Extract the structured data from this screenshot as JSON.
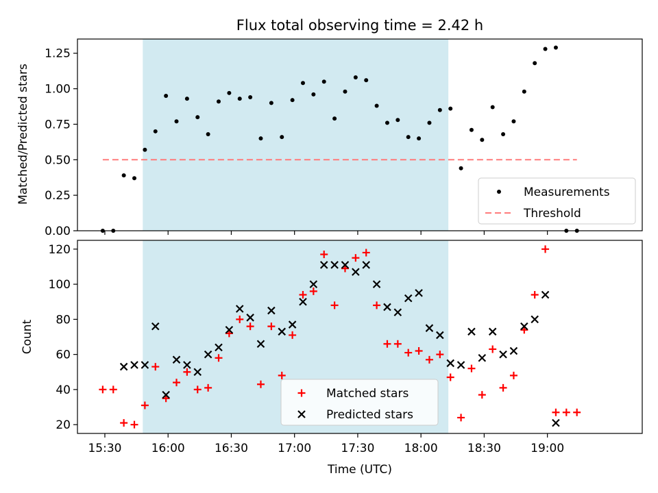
{
  "figure": {
    "title": "Flux total observing time = 2.42 h",
    "xlabel": "Time (UTC)"
  },
  "chart_data": [
    {
      "type": "scatter",
      "title": "Flux total observing time = 2.42 h",
      "xlabel": "",
      "ylabel": "Matched/Predicted stars",
      "x_unit": "time of day (UTC)",
      "xlim": [
        "15:17",
        "19:45"
      ],
      "ylim": [
        0,
        1.35
      ],
      "yticks": [
        0.0,
        0.25,
        0.5,
        0.75,
        1.0,
        1.25
      ],
      "ytick_labels": [
        "0.00",
        "0.25",
        "0.50",
        "0.75",
        "1.00",
        "1.25"
      ],
      "shaded_interval": [
        "15:48",
        "18:13"
      ],
      "shaded_color": "#add8e6",
      "legend": {
        "position": "bottom-right"
      },
      "series": [
        {
          "name": "Measurements",
          "marker": "dot",
          "color": "#000000",
          "x": [
            "15:29",
            "15:34",
            "15:39",
            "15:44",
            "15:49",
            "15:54",
            "15:59",
            "16:04",
            "16:09",
            "16:14",
            "16:19",
            "16:24",
            "16:29",
            "16:34",
            "16:39",
            "16:44",
            "16:49",
            "16:54",
            "16:59",
            "17:04",
            "17:09",
            "17:14",
            "17:19",
            "17:24",
            "17:29",
            "17:34",
            "17:39",
            "17:44",
            "17:49",
            "17:54",
            "17:59",
            "18:04",
            "18:09",
            "18:14",
            "18:19",
            "18:24",
            "18:29",
            "18:34",
            "18:39",
            "18:44",
            "18:49",
            "18:54",
            "18:59",
            "19:04",
            "19:09",
            "19:14"
          ],
          "y": [
            0.0,
            0.0,
            0.39,
            0.37,
            0.57,
            0.7,
            0.95,
            0.77,
            0.93,
            0.8,
            0.68,
            0.91,
            0.97,
            0.93,
            0.94,
            0.65,
            0.9,
            0.66,
            0.92,
            1.04,
            0.96,
            1.05,
            0.79,
            0.98,
            1.08,
            1.06,
            0.88,
            0.76,
            0.78,
            0.66,
            0.65,
            0.76,
            0.85,
            0.86,
            0.44,
            0.71,
            0.64,
            0.87,
            0.68,
            0.77,
            0.98,
            1.18,
            1.28,
            1.29,
            0.0,
            0.0
          ]
        },
        {
          "name": "Threshold",
          "line_style": "dashed",
          "color": "#ff7b7b",
          "x": [
            "15:29",
            "19:14"
          ],
          "y": [
            0.5,
            0.5
          ]
        }
      ]
    },
    {
      "type": "scatter",
      "title": "",
      "xlabel": "Time (UTC)",
      "ylabel": "Count",
      "x_unit": "time of day (UTC)",
      "xlim": [
        "15:17",
        "19:45"
      ],
      "ylim": [
        15,
        125
      ],
      "yticks": [
        20,
        40,
        60,
        80,
        100,
        120
      ],
      "xticks": [
        "15:30",
        "16:00",
        "16:30",
        "17:00",
        "17:30",
        "18:00",
        "18:30",
        "19:00"
      ],
      "shaded_interval": [
        "15:48",
        "18:13"
      ],
      "shaded_color": "#add8e6",
      "legend": {
        "position": "bottom-center"
      },
      "series": [
        {
          "name": "Matched stars",
          "marker": "plus",
          "color": "#ff0000",
          "x": [
            "15:29",
            "15:34",
            "15:39",
            "15:44",
            "15:49",
            "15:54",
            "15:59",
            "16:04",
            "16:09",
            "16:14",
            "16:19",
            "16:24",
            "16:29",
            "16:34",
            "16:39",
            "16:44",
            "16:49",
            "16:54",
            "16:59",
            "17:04",
            "17:09",
            "17:14",
            "17:19",
            "17:24",
            "17:29",
            "17:34",
            "17:39",
            "17:44",
            "17:49",
            "17:54",
            "17:59",
            "18:04",
            "18:09",
            "18:14",
            "18:19",
            "18:24",
            "18:29",
            "18:34",
            "18:39",
            "18:44",
            "18:49",
            "18:54",
            "18:59",
            "19:04",
            "19:09",
            "19:14"
          ],
          "y": [
            40,
            40,
            21,
            20,
            31,
            53,
            35,
            44,
            50,
            40,
            41,
            58,
            72,
            80,
            76,
            43,
            76,
            48,
            71,
            94,
            96,
            117,
            88,
            109,
            115,
            118,
            88,
            66,
            66,
            61,
            62,
            57,
            60,
            47,
            24,
            52,
            37,
            63,
            41,
            48,
            74,
            94,
            120,
            27,
            27,
            27
          ]
        },
        {
          "name": "Predicted stars",
          "marker": "x",
          "color": "#000000",
          "x": [
            "15:39",
            "15:44",
            "15:49",
            "15:54",
            "15:59",
            "16:04",
            "16:09",
            "16:14",
            "16:19",
            "16:24",
            "16:29",
            "16:34",
            "16:39",
            "16:44",
            "16:49",
            "16:54",
            "16:59",
            "17:04",
            "17:09",
            "17:14",
            "17:19",
            "17:24",
            "17:29",
            "17:34",
            "17:39",
            "17:44",
            "17:49",
            "17:54",
            "17:59",
            "18:04",
            "18:09",
            "18:14",
            "18:19",
            "18:24",
            "18:29",
            "18:34",
            "18:39",
            "18:44",
            "18:49",
            "18:54",
            "18:59",
            "19:04"
          ],
          "y": [
            53,
            54,
            54,
            76,
            37,
            57,
            54,
            50,
            60,
            64,
            74,
            86,
            81,
            66,
            85,
            73,
            77,
            90,
            100,
            111,
            111,
            111,
            107,
            111,
            100,
            87,
            84,
            92,
            95,
            75,
            71,
            55,
            54,
            73,
            58,
            73,
            60,
            62,
            76,
            80,
            94,
            21
          ]
        }
      ]
    }
  ]
}
